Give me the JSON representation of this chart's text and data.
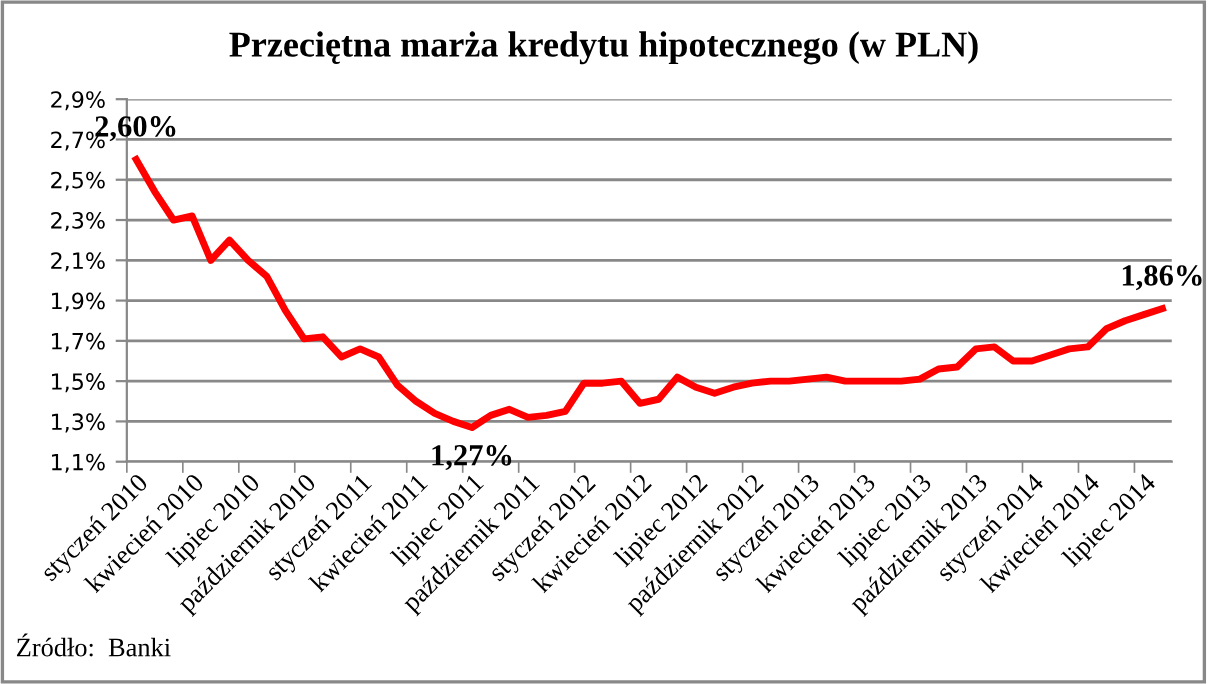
{
  "chart_data": {
    "type": "line",
    "title": "Przeciętna marża kredytu hipotecznego (w PLN)",
    "categories": [
      "styczeń 2010",
      null,
      null,
      "kwiecień 2010",
      null,
      null,
      "lipiec 2010",
      null,
      null,
      "październik 2010",
      null,
      null,
      "styczeń 2011",
      null,
      null,
      "kwiecień 2011",
      null,
      null,
      "lipiec 2011",
      null,
      null,
      "październik 2011",
      null,
      null,
      "styczeń 2012",
      null,
      null,
      "kwiecień 2012",
      null,
      null,
      "lipiec 2012",
      null,
      null,
      "październik 2012",
      null,
      null,
      "styczeń 2013",
      null,
      null,
      "kwiecień 2013",
      null,
      null,
      "lipiec 2013",
      null,
      null,
      "październik 2013",
      null,
      null,
      "styczeń 2014",
      null,
      null,
      "kwiecień 2014",
      null,
      null,
      "lipiec 2014",
      null
    ],
    "series": [
      {
        "color": "#ff0000",
        "values": [
          2.6,
          2.44,
          2.3,
          2.32,
          2.1,
          2.2,
          2.1,
          2.02,
          1.85,
          1.71,
          1.72,
          1.62,
          1.66,
          1.62,
          1.48,
          1.4,
          1.34,
          1.3,
          1.27,
          1.33,
          1.36,
          1.32,
          1.33,
          1.35,
          1.49,
          1.49,
          1.5,
          1.39,
          1.41,
          1.52,
          1.47,
          1.44,
          1.47,
          1.49,
          1.5,
          1.5,
          1.51,
          1.52,
          1.5,
          1.5,
          1.5,
          1.5,
          1.51,
          1.56,
          1.57,
          1.66,
          1.67,
          1.6,
          1.6,
          1.63,
          1.66,
          1.67,
          1.76,
          1.8,
          1.83,
          1.86
        ],
        "value_labels": [
          "2,60%",
          null,
          null,
          null,
          null,
          null,
          null,
          null,
          null,
          null,
          null,
          null,
          null,
          null,
          null,
          null,
          null,
          null,
          "1,27%",
          null,
          null,
          null,
          null,
          null,
          null,
          null,
          null,
          null,
          null,
          null,
          null,
          null,
          null,
          null,
          null,
          null,
          null,
          null,
          null,
          null,
          null,
          null,
          null,
          null,
          null,
          null,
          null,
          null,
          null,
          null,
          null,
          null,
          null,
          null,
          null,
          "1,86%"
        ]
      }
    ],
    "ylim": [
      1.1,
      2.9
    ],
    "yticks": [
      {
        "value": 1.1,
        "label": "1,1%"
      },
      {
        "value": 1.3,
        "label": "1,3%"
      },
      {
        "value": 1.5,
        "label": "1,5%"
      },
      {
        "value": 1.7,
        "label": "1,7%"
      },
      {
        "value": 1.9,
        "label": "1,9%"
      },
      {
        "value": 2.1,
        "label": "2,1%"
      },
      {
        "value": 2.3,
        "label": "2,3%"
      },
      {
        "value": 2.5,
        "label": "2,5%"
      },
      {
        "value": 2.7,
        "label": "2,7%"
      },
      {
        "value": 2.9,
        "label": "2,9%"
      }
    ],
    "grid": "y",
    "legend": false,
    "marker": "none",
    "line_style": "solid",
    "annotations": [
      "Źródło:  Banki"
    ]
  }
}
